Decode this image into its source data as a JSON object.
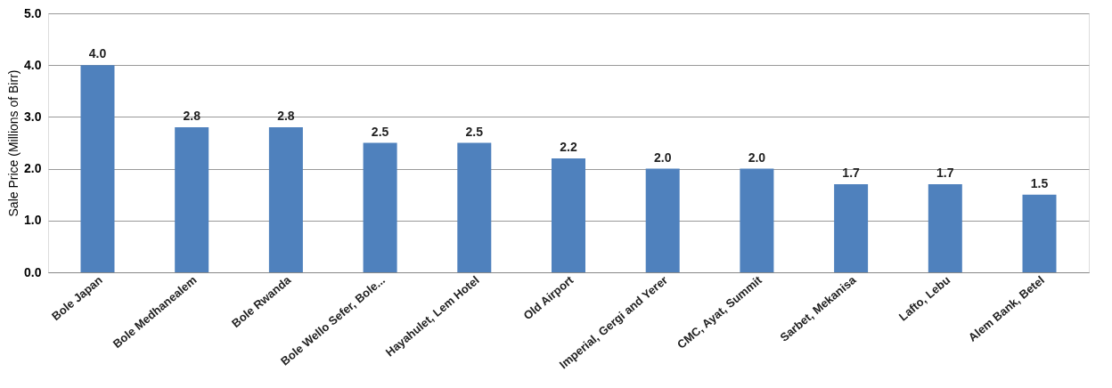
{
  "chart_data": {
    "type": "bar",
    "ylabel": "Sale Price (Millions of Birr)",
    "categories": [
      "Bole Japan",
      "Bole Medhanealem",
      "Bole Rwanda",
      "Bole Wello Sefer, Bole...",
      "Hayahulet, Lem Hotel",
      "Old Airport",
      "Imperial, Gergi and Yerer",
      "CMC, Ayat, Summit",
      "Sarbet, Mekanisa",
      "Lafto, Lebu",
      "Alem Bank, Betel"
    ],
    "values": [
      4.0,
      2.8,
      2.8,
      2.5,
      2.5,
      2.2,
      2.0,
      2.0,
      1.7,
      1.7,
      1.5
    ],
    "value_labels": [
      "4.0",
      "2.8",
      "2.8",
      "2.5",
      "2.5",
      "2.2",
      "2.0",
      "2.0",
      "1.7",
      "1.7",
      "1.5"
    ],
    "color": "#4f81bd",
    "ylim": [
      0,
      5
    ],
    "yticks": [
      {
        "value": 0,
        "label": "0.0"
      },
      {
        "value": 1,
        "label": "1.0"
      },
      {
        "value": 2,
        "label": "2.0"
      },
      {
        "value": 3,
        "label": "3.0"
      },
      {
        "value": 4,
        "label": "4.0"
      },
      {
        "value": 5,
        "label": "5.0"
      }
    ],
    "grid": "y"
  }
}
